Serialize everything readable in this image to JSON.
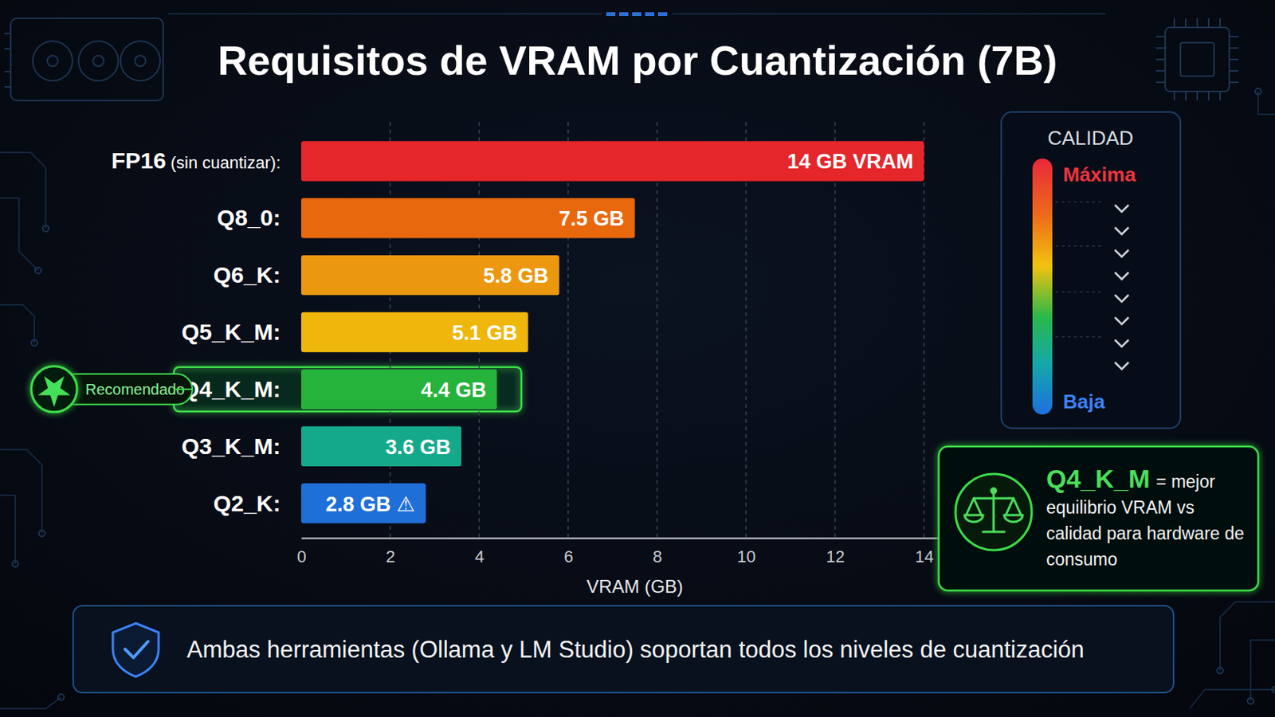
{
  "chart_data": {
    "type": "bar",
    "orientation": "horizontal",
    "title": "Requisitos de VRAM por Cuantización (7B)",
    "categories": [
      "FP16 (sin cuantizar):",
      "Q8_0:",
      "Q6_K:",
      "Q5_K_M:",
      "Q4_K_M:",
      "Q3_K_M:",
      "Q2_K:"
    ],
    "values": [
      14,
      7.5,
      5.8,
      5.1,
      4.4,
      3.6,
      2.8
    ],
    "value_labels": [
      "14 GB VRAM",
      "7.5 GB",
      "5.8 GB",
      "5.1 GB",
      "4.4 GB",
      "3.6 GB",
      "2.8 GB ⚠"
    ],
    "colors": [
      "#e5262b",
      "#e8680e",
      "#eb9810",
      "#efb70c",
      "#25b33b",
      "#15a98c",
      "#1f6fd8"
    ],
    "data_labels": true,
    "grid": true,
    "xlabel": "VRAM (GB)",
    "xlim": [
      0,
      15
    ],
    "xticks": [
      0,
      2,
      4,
      6,
      8,
      10,
      12,
      14
    ],
    "annotations": {
      "recommended": {
        "label": "Recomendado",
        "category": "Q4_K_M:"
      },
      "quality_scale": {
        "title": "CALIDAD",
        "high": "Máxima",
        "low": "Baja"
      },
      "callout": {
        "title": "Q4_K_M",
        "text": "= mejor equilibrio VRAM vs calidad para hardware de consumo"
      },
      "footer": "Ambas herramientas (Ollama y LM Studio) soportan todos los niveles de cuantización"
    }
  }
}
